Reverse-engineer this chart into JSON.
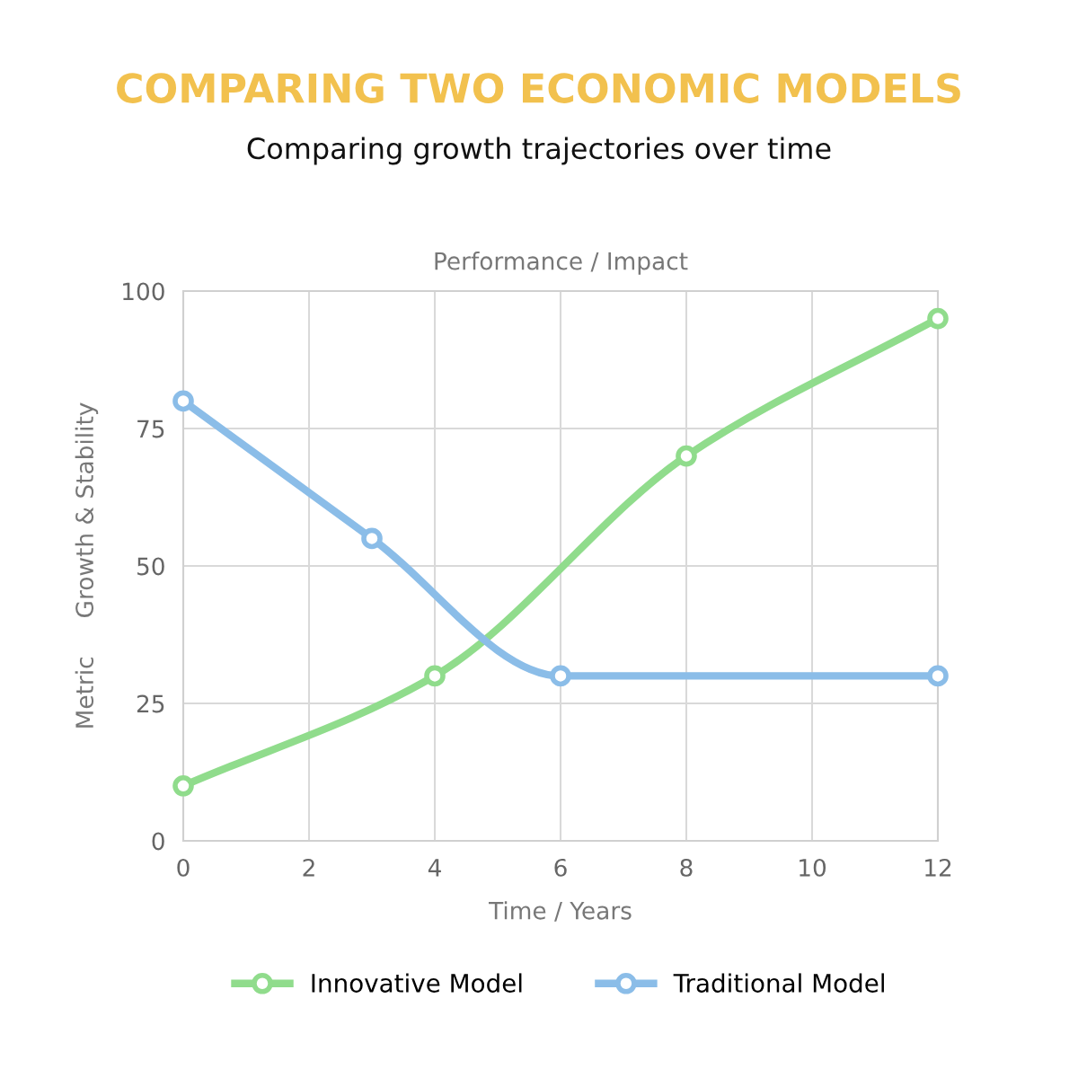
{
  "chart_data": {
    "type": "line",
    "title": "COMPARING TWO ECONOMIC MODELS",
    "subtitle": "Comparing growth trajectories over time",
    "xlabel": "Time / Years",
    "ylabel": "Metric     Growth & Stability",
    "annotations": [
      "Performance / Impact"
    ],
    "series": [
      {
        "name": "Innovative Model",
        "color": "#90dc8c",
        "x": [
          0,
          4,
          8,
          12
        ],
        "values": [
          10,
          30,
          70,
          95
        ]
      },
      {
        "name": "Traditional Model",
        "color": "#8bbde8",
        "x": [
          0,
          3,
          6,
          12
        ],
        "values": [
          80,
          55,
          30,
          30
        ]
      }
    ],
    "xlim": [
      0,
      12
    ],
    "xticks": [
      0,
      2,
      4,
      6,
      8,
      10,
      12
    ],
    "ylim": [
      0,
      100
    ],
    "yticks": [
      0,
      25,
      50,
      75,
      100
    ],
    "grid": true,
    "legend": "bottom",
    "marker": "circle",
    "line_style": "solid"
  }
}
